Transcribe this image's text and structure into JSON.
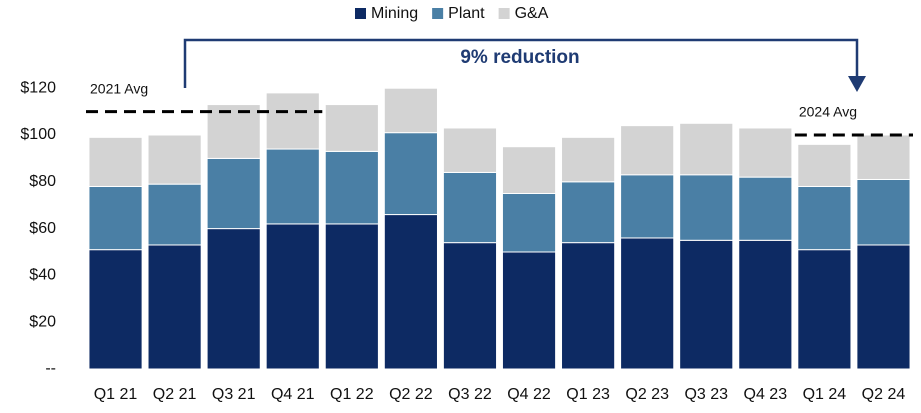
{
  "chart_data": {
    "type": "stacked_bar",
    "categories": [
      "Q1 21",
      "Q2 21",
      "Q3 21",
      "Q4 21",
      "Q1 22",
      "Q2 22",
      "Q3 22",
      "Q4 22",
      "Q1 23",
      "Q2 23",
      "Q3 23",
      "Q4 23",
      "Q1 24",
      "Q2 24"
    ],
    "series": [
      {
        "name": "Mining",
        "color": "#0d2a63",
        "values": [
          51,
          53,
          60,
          62,
          62,
          66,
          54,
          50,
          54,
          56,
          55,
          55,
          51,
          53
        ]
      },
      {
        "name": "Plant",
        "color": "#4a7fa5",
        "values": [
          27,
          26,
          30,
          32,
          31,
          35,
          30,
          25,
          26,
          27,
          28,
          27,
          27,
          28
        ]
      },
      {
        "name": "G&A",
        "color": "#d3d3d3",
        "values": [
          21,
          21,
          23,
          24,
          20,
          19,
          19,
          20,
          19,
          21,
          22,
          21,
          18,
          19
        ]
      }
    ],
    "ylim": [
      0,
      130
    ],
    "yticks": [
      {
        "value": 0,
        "label": "--"
      },
      {
        "value": 20,
        "label": "$20"
      },
      {
        "value": 40,
        "label": "$40"
      },
      {
        "value": 60,
        "label": "$60"
      },
      {
        "value": 80,
        "label": "$80"
      },
      {
        "value": 100,
        "label": "$100"
      },
      {
        "value": 120,
        "label": "$120"
      }
    ],
    "annotations": [
      {
        "text": "2021 Avg",
        "value": 110
      },
      {
        "text": "2024 Avg",
        "value": 100
      }
    ],
    "callout": "9% reduction",
    "legend": "top"
  }
}
